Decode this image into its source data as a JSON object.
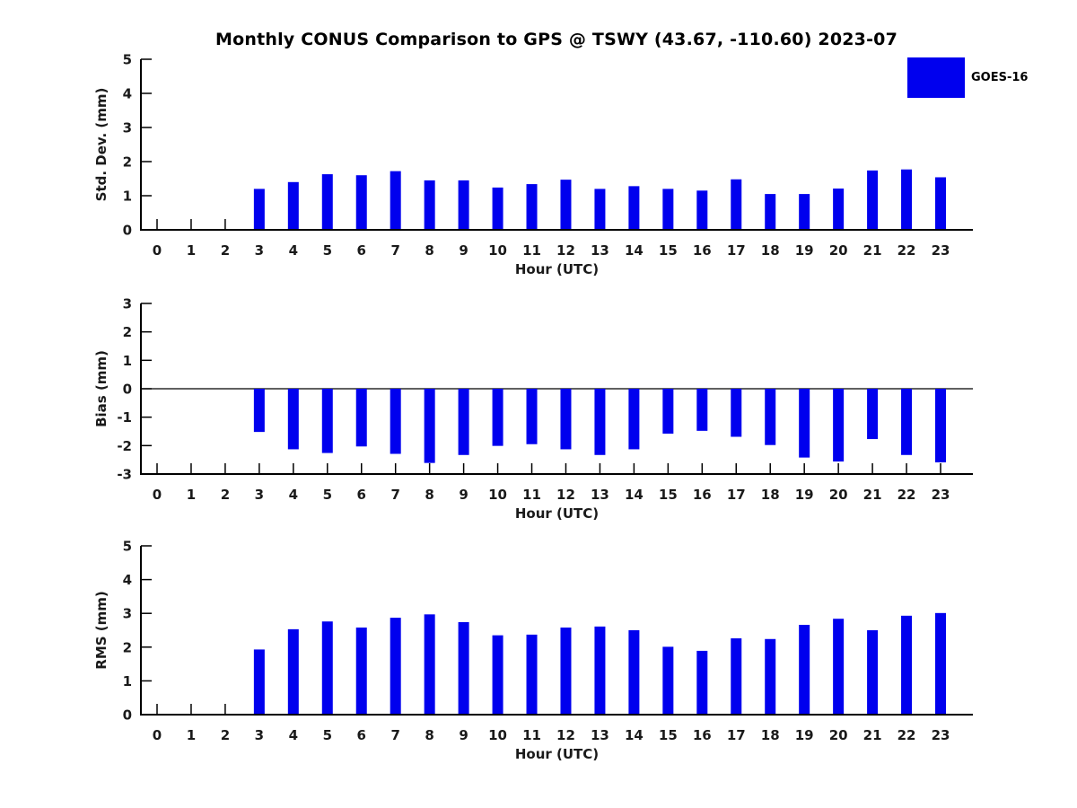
{
  "title": "Monthly CONUS Comparison to GPS @ TSWY (43.67, -110.60) 2023-07",
  "legend": {
    "label": "GOES-16",
    "color": "#0000ee",
    "position": "top-right-outside-axes"
  },
  "chart_data": [
    {
      "type": "bar",
      "id": "std-dev",
      "ylabel": "Std. Dev. (mm)",
      "xlabel": "Hour (UTC)",
      "categories": [
        0,
        1,
        2,
        3,
        4,
        5,
        6,
        7,
        8,
        9,
        10,
        11,
        12,
        13,
        14,
        15,
        16,
        17,
        18,
        19,
        20,
        21,
        22,
        23
      ],
      "values": [
        null,
        null,
        null,
        1.2,
        1.4,
        1.63,
        1.6,
        1.72,
        1.45,
        1.45,
        1.24,
        1.34,
        1.47,
        1.2,
        1.28,
        1.2,
        1.15,
        1.48,
        1.05,
        1.05,
        1.21,
        1.74,
        1.77,
        1.54
      ],
      "ylim": [
        0,
        5
      ],
      "yticks": [
        0,
        1,
        2,
        3,
        4,
        5
      ],
      "bar_color": "#0000ee",
      "grid": false
    },
    {
      "type": "bar",
      "id": "bias",
      "ylabel": "Bias (mm)",
      "xlabel": "Hour (UTC)",
      "categories": [
        0,
        1,
        2,
        3,
        4,
        5,
        6,
        7,
        8,
        9,
        10,
        11,
        12,
        13,
        14,
        15,
        16,
        17,
        18,
        19,
        20,
        21,
        22,
        23
      ],
      "values": [
        null,
        null,
        null,
        -1.52,
        -2.13,
        -2.26,
        -2.03,
        -2.29,
        -2.61,
        -2.33,
        -2.01,
        -1.95,
        -2.13,
        -2.33,
        -2.13,
        -1.58,
        -1.48,
        -1.69,
        -1.98,
        -2.42,
        -2.56,
        -1.77,
        -2.33,
        -2.59
      ],
      "ylim": [
        -3,
        3
      ],
      "yticks": [
        -3,
        -2,
        -1,
        0,
        1,
        2,
        3
      ],
      "zero_line": true,
      "bar_color": "#0000ee",
      "grid": false
    },
    {
      "type": "bar",
      "id": "rms",
      "ylabel": "RMS (mm)",
      "xlabel": "Hour (UTC)",
      "categories": [
        0,
        1,
        2,
        3,
        4,
        5,
        6,
        7,
        8,
        9,
        10,
        11,
        12,
        13,
        14,
        15,
        16,
        17,
        18,
        19,
        20,
        21,
        22,
        23
      ],
      "values": [
        null,
        null,
        null,
        1.93,
        2.53,
        2.76,
        2.58,
        2.87,
        2.97,
        2.74,
        2.35,
        2.37,
        2.58,
        2.61,
        2.5,
        2.01,
        1.89,
        2.26,
        2.24,
        2.66,
        2.84,
        2.5,
        2.93,
        3.01
      ],
      "ylim": [
        0,
        5
      ],
      "yticks": [
        0,
        1,
        2,
        3,
        4,
        5
      ],
      "bar_color": "#0000ee",
      "grid": false
    }
  ]
}
